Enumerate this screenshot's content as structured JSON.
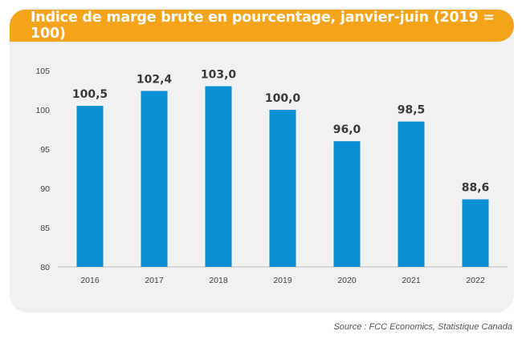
{
  "chart_data": {
    "type": "bar",
    "title": "Indice de marge brute en pourcentage, janvier-juin (2019 = 100)",
    "xlabel": "",
    "ylabel": "",
    "categories": [
      "2016",
      "2017",
      "2018",
      "2019",
      "2020",
      "2021",
      "2022"
    ],
    "values": [
      100.5,
      102.4,
      103.0,
      100.0,
      96.0,
      98.5,
      88.6
    ],
    "value_labels": [
      "100,5",
      "102,4",
      "103,0",
      "100,0",
      "96,0",
      "98,5",
      "88,6"
    ],
    "ylim": [
      80,
      105
    ],
    "yticks": [
      "80",
      "85",
      "90",
      "95",
      "100",
      "105"
    ],
    "ytick_values": [
      80,
      85,
      90,
      95,
      100,
      105
    ],
    "grid": false,
    "legend": "none",
    "colors": {
      "bar": "#0a8fd5",
      "title_bg": "#f5a31a",
      "panel_bg": "#f1f1f1"
    }
  },
  "source": "Source : FCC Economics, Statistique Canada"
}
